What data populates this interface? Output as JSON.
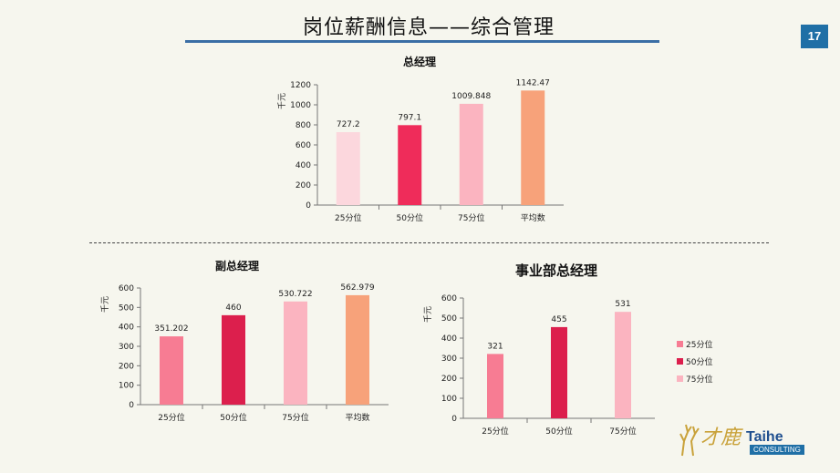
{
  "page": {
    "title": "岗位薪酬信息——综合管理",
    "page_number": "17"
  },
  "logo": {
    "cn_text": "才鹿",
    "en_text": "Taihe",
    "en_sub": "CONSULTING"
  },
  "chart_data": [
    {
      "type": "bar",
      "title": "总经理",
      "ylabel": "千元",
      "categories": [
        "25分位",
        "50分位",
        "75分位",
        "平均数"
      ],
      "values": [
        727.2,
        797.1,
        1009.848,
        1142.47
      ],
      "value_labels": [
        "727.2",
        "797.1",
        "1009.848",
        "1142.47"
      ],
      "colors": [
        "#fcd7dd",
        "#ef2c5a",
        "#fbb4c0",
        "#f7a27a"
      ],
      "ylim": [
        0,
        1200
      ],
      "yticks": [
        0,
        200,
        400,
        600,
        800,
        1000,
        1200
      ],
      "legend": "none"
    },
    {
      "type": "bar",
      "title": "副总经理",
      "ylabel": "千元",
      "categories": [
        "25分位",
        "50分位",
        "75分位",
        "平均数"
      ],
      "values": [
        351.202,
        460,
        530.722,
        562.979
      ],
      "value_labels": [
        "351.202",
        "460",
        "530.722",
        "562.979"
      ],
      "colors": [
        "#f77c93",
        "#dc1f4d",
        "#fbb4c0",
        "#f7a27a"
      ],
      "ylim": [
        0,
        600
      ],
      "yticks": [
        0,
        100,
        200,
        300,
        400,
        500,
        600
      ],
      "legend": "none"
    },
    {
      "type": "bar",
      "title": "事业部总经理",
      "ylabel": "千元",
      "categories": [
        "25分位",
        "50分位",
        "75分位"
      ],
      "values": [
        321,
        455,
        531
      ],
      "value_labels": [
        "321",
        "455",
        "531"
      ],
      "colors": [
        "#f77c93",
        "#dc1f4d",
        "#fbb4c0"
      ],
      "ylim": [
        0,
        600
      ],
      "yticks": [
        0,
        100,
        200,
        300,
        400,
        500,
        600
      ],
      "legend": "right",
      "legend_entries": [
        "25分位",
        "50分位",
        "75分位"
      ]
    }
  ]
}
